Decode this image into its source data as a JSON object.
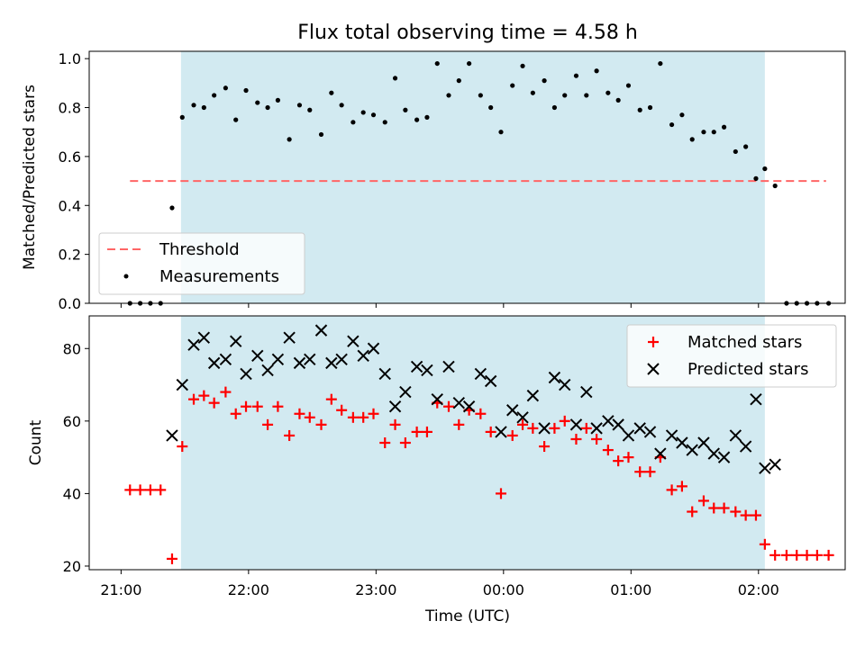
{
  "chart_data": {
    "title": "Flux total observing time = 4.58 h",
    "xlabel": "Time (UTC)",
    "x_unit": "hours (UTC, after 21:00 on the first day)",
    "xlim": [
      20.75,
      26.68
    ],
    "x_ticks": [
      {
        "value": 21,
        "label": "21:00"
      },
      {
        "value": 22,
        "label": "22:00"
      },
      {
        "value": 23,
        "label": "23:00"
      },
      {
        "value": 24,
        "label": "00:00"
      },
      {
        "value": 25,
        "label": "01:00"
      },
      {
        "value": 26,
        "label": "02:00"
      }
    ],
    "shaded_span": [
      21.47,
      26.05
    ],
    "shade_color": "#add8e6",
    "panels": [
      {
        "type": "scatter",
        "ylabel": "Matched/Predicted stars",
        "ylim": [
          0,
          1.03
        ],
        "y_ticks": [
          0,
          0.2,
          0.4,
          0.6,
          0.8,
          1.0
        ],
        "y_tick_labels": [
          "0.0",
          "0.2",
          "0.4",
          "0.6",
          "0.8",
          "1.0"
        ],
        "legend": {
          "position": "lower-left",
          "entries": [
            {
              "label": "Threshold",
              "kind": "dashed-line",
              "color": "#ff6666"
            },
            {
              "label": "Measurements",
              "kind": "dot",
              "color": "#000000"
            }
          ]
        },
        "threshold": {
          "value": 0.5,
          "x_range": [
            21.07,
            26.53
          ],
          "color": "#ff6666"
        },
        "measurements": {
          "color": "#000000",
          "x": [
            21.07,
            21.15,
            21.23,
            21.31,
            21.4,
            21.48,
            21.57,
            21.65,
            21.73,
            21.82,
            21.9,
            21.98,
            22.07,
            22.15,
            22.23,
            22.32,
            22.4,
            22.48,
            22.57,
            22.65,
            22.73,
            22.82,
            22.9,
            22.98,
            23.07,
            23.15,
            23.23,
            23.32,
            23.4,
            23.48,
            23.57,
            23.65,
            23.73,
            23.82,
            23.9,
            23.98,
            24.07,
            24.15,
            24.23,
            24.32,
            24.4,
            24.48,
            24.57,
            24.65,
            24.73,
            24.82,
            24.9,
            24.98,
            25.07,
            25.15,
            25.23,
            25.32,
            25.4,
            25.48,
            25.57,
            25.65,
            25.73,
            25.82,
            25.9,
            25.98,
            26.05,
            26.13,
            26.22,
            26.3,
            26.38,
            26.46,
            26.55
          ],
          "y": [
            0.0,
            0.0,
            0.0,
            0.0,
            0.39,
            0.76,
            0.81,
            0.8,
            0.85,
            0.88,
            0.75,
            0.87,
            0.82,
            0.8,
            0.83,
            0.67,
            0.81,
            0.79,
            0.69,
            0.86,
            0.81,
            0.74,
            0.78,
            0.77,
            0.74,
            0.92,
            0.79,
            0.75,
            0.76,
            0.98,
            0.85,
            0.91,
            0.98,
            0.85,
            0.8,
            0.7,
            0.89,
            0.97,
            0.86,
            0.91,
            0.8,
            0.85,
            0.93,
            0.85,
            0.95,
            0.86,
            0.83,
            0.89,
            0.79,
            0.8,
            0.98,
            0.73,
            0.77,
            0.67,
            0.7,
            0.7,
            0.72,
            0.62,
            0.64,
            0.51,
            0.55,
            0.48,
            0.0,
            0.0,
            0.0,
            0.0,
            0.0
          ]
        }
      },
      {
        "type": "scatter",
        "ylabel": "Count",
        "ylim": [
          19,
          89
        ],
        "y_ticks": [
          20,
          40,
          60,
          80
        ],
        "y_tick_labels": [
          "20",
          "40",
          "60",
          "80"
        ],
        "legend": {
          "position": "upper-right",
          "entries": [
            {
              "label": "Matched stars",
              "kind": "plus",
              "color": "#ff0000"
            },
            {
              "label": "Predicted stars",
              "kind": "cross",
              "color": "#000000"
            }
          ]
        },
        "series": [
          {
            "name": "Matched stars",
            "marker": "plus",
            "color": "#ff0000",
            "x": [
              21.07,
              21.15,
              21.23,
              21.31,
              21.4,
              21.48,
              21.57,
              21.65,
              21.73,
              21.82,
              21.9,
              21.98,
              22.07,
              22.15,
              22.23,
              22.32,
              22.4,
              22.48,
              22.57,
              22.65,
              22.73,
              22.82,
              22.9,
              22.98,
              23.07,
              23.15,
              23.23,
              23.32,
              23.4,
              23.48,
              23.57,
              23.65,
              23.73,
              23.82,
              23.9,
              23.98,
              24.07,
              24.15,
              24.23,
              24.32,
              24.4,
              24.48,
              24.57,
              24.65,
              24.73,
              24.82,
              24.9,
              24.98,
              25.07,
              25.15,
              25.23,
              25.32,
              25.4,
              25.48,
              25.57,
              25.65,
              25.73,
              25.82,
              25.9,
              25.98,
              26.05,
              26.13,
              26.22,
              26.3,
              26.38,
              26.46,
              26.55
            ],
            "y": [
              41,
              41,
              41,
              41,
              22,
              53,
              66,
              67,
              65,
              68,
              62,
              64,
              64,
              59,
              64,
              56,
              62,
              61,
              59,
              66,
              63,
              61,
              61,
              62,
              54,
              59,
              54,
              57,
              57,
              65,
              64,
              59,
              63,
              62,
              57,
              40,
              56,
              59,
              58,
              53,
              58,
              60,
              55,
              58,
              55,
              52,
              49,
              50,
              46,
              46,
              50,
              41,
              42,
              35,
              38,
              36,
              36,
              35,
              34,
              34,
              26,
              23,
              23,
              23,
              23,
              23,
              23
            ]
          },
          {
            "name": "Predicted stars",
            "marker": "cross",
            "color": "#000000",
            "x": [
              21.4,
              21.48,
              21.57,
              21.65,
              21.73,
              21.82,
              21.9,
              21.98,
              22.07,
              22.15,
              22.23,
              22.32,
              22.4,
              22.48,
              22.57,
              22.65,
              22.73,
              22.82,
              22.9,
              22.98,
              23.07,
              23.15,
              23.23,
              23.32,
              23.4,
              23.48,
              23.57,
              23.65,
              23.73,
              23.82,
              23.9,
              23.98,
              24.07,
              24.15,
              24.23,
              24.32,
              24.4,
              24.48,
              24.57,
              24.65,
              24.73,
              24.82,
              24.9,
              24.98,
              25.07,
              25.15,
              25.23,
              25.32,
              25.4,
              25.48,
              25.57,
              25.65,
              25.73,
              25.82,
              25.9,
              25.98,
              26.05,
              26.13
            ],
            "y": [
              56,
              70,
              81,
              83,
              76,
              77,
              82,
              73,
              78,
              74,
              77,
              83,
              76,
              77,
              85,
              76,
              77,
              82,
              78,
              80,
              73,
              64,
              68,
              75,
              74,
              66,
              75,
              65,
              64,
              73,
              71,
              57,
              63,
              61,
              67,
              58,
              72,
              70,
              59,
              68,
              58,
              60,
              59,
              56,
              58,
              57,
              51,
              56,
              54,
              52,
              54,
              51,
              50,
              56,
              53,
              66,
              47,
              48
            ]
          }
        ]
      }
    ]
  }
}
